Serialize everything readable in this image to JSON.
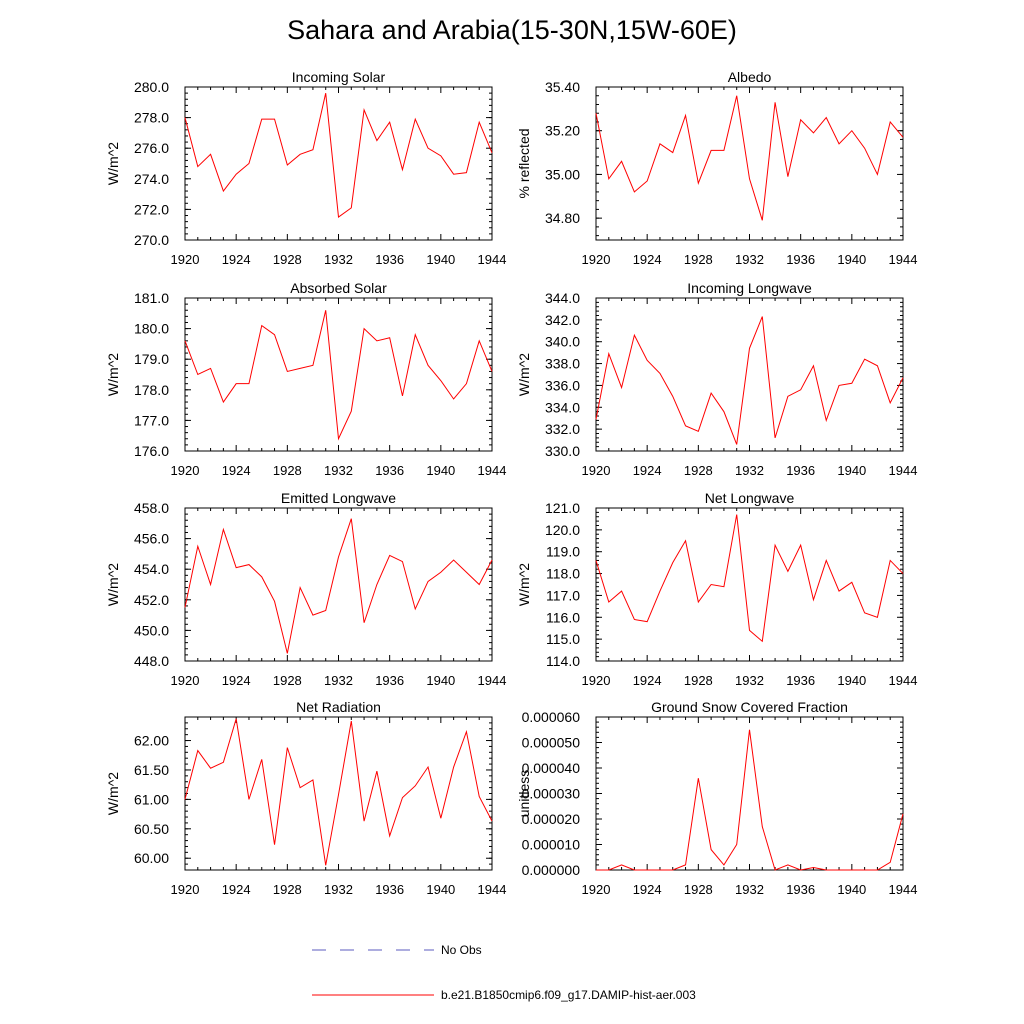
{
  "title": "Sahara and Arabia(15-30N,15W-60E)",
  "legend": {
    "obs_label": "No Obs",
    "obs_color": "#5b5bbf",
    "model_label": "b.e21.B1850cmip6.f09_g17.DAMIP-hist-aer.003",
    "model_color": "#ff0000"
  },
  "chart_data": [
    {
      "type": "line",
      "title": "Incoming Solar",
      "ylabel": "W/m^2",
      "xlim": [
        1920,
        1944
      ],
      "ylim": [
        270,
        280
      ],
      "xticks": [
        "1920",
        "1924",
        "1928",
        "1932",
        "1936",
        "1940",
        "1944"
      ],
      "yticks": [
        "270.0",
        "272.0",
        "274.0",
        "276.0",
        "278.0",
        "280.0"
      ],
      "x": [
        1920,
        1921,
        1922,
        1923,
        1924,
        1925,
        1926,
        1927,
        1928,
        1929,
        1930,
        1931,
        1932,
        1933,
        1934,
        1935,
        1936,
        1937,
        1938,
        1939,
        1940,
        1941,
        1942,
        1943,
        1944
      ],
      "series": [
        {
          "values": [
            278.0,
            274.8,
            275.6,
            273.2,
            274.3,
            275.0,
            277.9,
            277.9,
            274.9,
            275.6,
            275.9,
            279.6,
            271.5,
            272.1,
            278.5,
            276.5,
            277.7,
            274.6,
            277.9,
            276.0,
            275.5,
            274.3,
            274.4,
            277.7,
            275.7
          ]
        }
      ]
    },
    {
      "type": "line",
      "title": "Albedo",
      "ylabel": "% reflected",
      "xlim": [
        1920,
        1944
      ],
      "ylim": [
        34.7,
        35.4
      ],
      "xticks": [
        "1920",
        "1924",
        "1928",
        "1932",
        "1936",
        "1940",
        "1944"
      ],
      "yticks": [
        "34.80",
        "35.00",
        "35.20",
        "35.40"
      ],
      "x": [
        1920,
        1921,
        1922,
        1923,
        1924,
        1925,
        1926,
        1927,
        1928,
        1929,
        1930,
        1931,
        1932,
        1933,
        1934,
        1935,
        1936,
        1937,
        1938,
        1939,
        1940,
        1941,
        1942,
        1943,
        1944
      ],
      "series": [
        {
          "values": [
            35.28,
            34.98,
            35.06,
            34.92,
            34.97,
            35.14,
            35.1,
            35.27,
            34.96,
            35.11,
            35.11,
            35.36,
            34.98,
            34.79,
            35.33,
            34.99,
            35.25,
            35.19,
            35.26,
            35.14,
            35.2,
            35.12,
            35.0,
            35.24,
            35.17
          ]
        }
      ]
    },
    {
      "type": "line",
      "title": "Absorbed Solar",
      "ylabel": "W/m^2",
      "xlim": [
        1920,
        1944
      ],
      "ylim": [
        176,
        181
      ],
      "xticks": [
        "1920",
        "1924",
        "1928",
        "1932",
        "1936",
        "1940",
        "1944"
      ],
      "yticks": [
        "176.0",
        "177.0",
        "178.0",
        "179.0",
        "180.0",
        "181.0"
      ],
      "x": [
        1920,
        1921,
        1922,
        1923,
        1924,
        1925,
        1926,
        1927,
        1928,
        1929,
        1930,
        1931,
        1932,
        1933,
        1934,
        1935,
        1936,
        1937,
        1938,
        1939,
        1940,
        1941,
        1942,
        1943,
        1944
      ],
      "series": [
        {
          "values": [
            179.6,
            178.5,
            178.7,
            177.6,
            178.2,
            178.2,
            180.1,
            179.8,
            178.6,
            178.7,
            178.8,
            180.6,
            176.4,
            177.3,
            180.0,
            179.6,
            179.7,
            177.8,
            179.8,
            178.8,
            178.3,
            177.7,
            178.2,
            179.6,
            178.6
          ]
        }
      ]
    },
    {
      "type": "line",
      "title": "Incoming Longwave",
      "ylabel": "W/m^2",
      "xlim": [
        1920,
        1944
      ],
      "ylim": [
        330,
        344
      ],
      "xticks": [
        "1920",
        "1924",
        "1928",
        "1932",
        "1936",
        "1940",
        "1944"
      ],
      "yticks": [
        "330.0",
        "332.0",
        "334.0",
        "336.0",
        "338.0",
        "340.0",
        "342.0",
        "344.0"
      ],
      "x": [
        1920,
        1921,
        1922,
        1923,
        1924,
        1925,
        1926,
        1927,
        1928,
        1929,
        1930,
        1931,
        1932,
        1933,
        1934,
        1935,
        1936,
        1937,
        1938,
        1939,
        1940,
        1941,
        1942,
        1943,
        1944
      ],
      "series": [
        {
          "values": [
            332.9,
            338.9,
            335.8,
            340.6,
            338.3,
            337.1,
            335.0,
            332.3,
            331.8,
            335.3,
            333.6,
            330.6,
            339.4,
            342.3,
            331.2,
            335.0,
            335.6,
            337.8,
            332.8,
            336.0,
            336.2,
            338.4,
            337.8,
            334.4,
            336.7
          ]
        }
      ]
    },
    {
      "type": "line",
      "title": "Emitted Longwave",
      "ylabel": "W/m^2",
      "xlim": [
        1920,
        1944
      ],
      "ylim": [
        448,
        458
      ],
      "xticks": [
        "1920",
        "1924",
        "1928",
        "1932",
        "1936",
        "1940",
        "1944"
      ],
      "yticks": [
        "448.0",
        "450.0",
        "452.0",
        "454.0",
        "456.0",
        "458.0"
      ],
      "x": [
        1920,
        1921,
        1922,
        1923,
        1924,
        1925,
        1926,
        1927,
        1928,
        1929,
        1930,
        1931,
        1932,
        1933,
        1934,
        1935,
        1936,
        1937,
        1938,
        1939,
        1940,
        1941,
        1942,
        1943,
        1944
      ],
      "series": [
        {
          "values": [
            451.5,
            455.5,
            453.0,
            456.6,
            454.1,
            454.3,
            453.5,
            451.9,
            448.5,
            452.8,
            451.0,
            451.3,
            454.8,
            457.3,
            450.5,
            453.0,
            454.9,
            454.5,
            451.4,
            453.2,
            453.8,
            454.6,
            453.8,
            453.0,
            454.6
          ]
        }
      ]
    },
    {
      "type": "line",
      "title": "Net Longwave",
      "ylabel": "W/m^2",
      "xlim": [
        1920,
        1944
      ],
      "ylim": [
        114,
        121
      ],
      "xticks": [
        "1920",
        "1924",
        "1928",
        "1932",
        "1936",
        "1940",
        "1944"
      ],
      "yticks": [
        "114.0",
        "115.0",
        "116.0",
        "117.0",
        "118.0",
        "119.0",
        "120.0",
        "121.0"
      ],
      "x": [
        1920,
        1921,
        1922,
        1923,
        1924,
        1925,
        1926,
        1927,
        1928,
        1929,
        1930,
        1931,
        1932,
        1933,
        1934,
        1935,
        1936,
        1937,
        1938,
        1939,
        1940,
        1941,
        1942,
        1943,
        1944
      ],
      "series": [
        {
          "values": [
            118.6,
            116.7,
            117.2,
            115.9,
            115.8,
            117.2,
            118.5,
            119.5,
            116.7,
            117.5,
            117.4,
            120.7,
            115.4,
            114.9,
            119.3,
            118.1,
            119.3,
            116.8,
            118.6,
            117.2,
            117.6,
            116.2,
            116.0,
            118.6,
            118.0
          ]
        }
      ]
    },
    {
      "type": "line",
      "title": "Net Radiation",
      "ylabel": "W/m^2",
      "xlim": [
        1920,
        1944
      ],
      "ylim": [
        59.8,
        62.4
      ],
      "xticks": [
        "1920",
        "1924",
        "1928",
        "1932",
        "1936",
        "1940",
        "1944"
      ],
      "yticks": [
        "60.00",
        "60.50",
        "61.00",
        "61.50",
        "62.00"
      ],
      "x": [
        1920,
        1921,
        1922,
        1923,
        1924,
        1925,
        1926,
        1927,
        1928,
        1929,
        1930,
        1931,
        1932,
        1933,
        1934,
        1935,
        1936,
        1937,
        1938,
        1939,
        1940,
        1941,
        1942,
        1943,
        1944
      ],
      "series": [
        {
          "values": [
            61.0,
            61.83,
            61.53,
            61.63,
            62.37,
            61.0,
            61.68,
            60.23,
            61.88,
            61.2,
            61.33,
            59.88,
            61.08,
            62.33,
            60.63,
            61.48,
            60.38,
            61.03,
            61.23,
            61.55,
            60.68,
            61.55,
            62.15,
            61.05,
            60.63
          ]
        }
      ]
    },
    {
      "type": "line",
      "title": "Ground Snow Covered Fraction",
      "ylabel": "unitless",
      "xlim": [
        1920,
        1944
      ],
      "ylim": [
        0,
        6e-05
      ],
      "xticks": [
        "1920",
        "1924",
        "1928",
        "1932",
        "1936",
        "1940",
        "1944"
      ],
      "yticks": [
        "0.000000",
        "0.000010",
        "0.000020",
        "0.000030",
        "0.000040",
        "0.000050",
        "0.000060"
      ],
      "x": [
        1920,
        1921,
        1922,
        1923,
        1924,
        1925,
        1926,
        1927,
        1928,
        1929,
        1930,
        1931,
        1932,
        1933,
        1934,
        1935,
        1936,
        1937,
        1938,
        1939,
        1940,
        1941,
        1942,
        1943,
        1944
      ],
      "series": [
        {
          "values": [
            0,
            0,
            2e-06,
            0,
            0,
            0,
            0,
            2e-06,
            3.6e-05,
            8e-06,
            2e-06,
            1e-05,
            5.5e-05,
            1.7e-05,
            0,
            2e-06,
            0,
            1e-06,
            0,
            0,
            0,
            0,
            0,
            3e-06,
            2.2e-05
          ]
        }
      ]
    }
  ]
}
